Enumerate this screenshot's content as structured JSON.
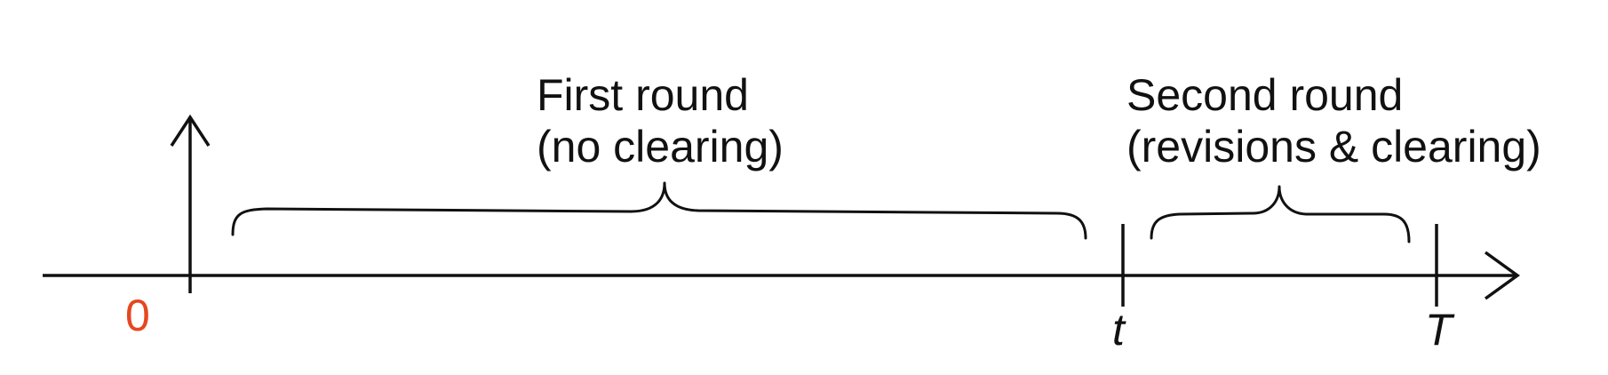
{
  "timeline": {
    "origin_label": "0",
    "origin_color": "#e5471f",
    "tick_t_label": "t",
    "tick_T_label": "T",
    "line_color": "#111111"
  },
  "phases": {
    "first": {
      "title": "First round",
      "subtitle": "(no clearing)"
    },
    "second": {
      "title": "Second round",
      "subtitle": "(revisions & clearing)"
    }
  }
}
